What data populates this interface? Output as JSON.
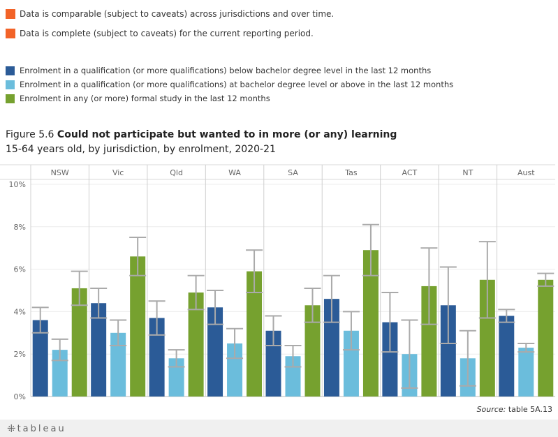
{
  "notes": {
    "items": [
      {
        "text": "Data is comparable (subject to caveats) across jurisdictions and over time.",
        "color": "#F26328"
      },
      {
        "text": "Data is complete (subject to caveats) for the current reporting period.",
        "color": "#F26328"
      }
    ]
  },
  "legend": {
    "items": [
      {
        "text": "Enrolment in a qualification (or more qualifications) below bachelor degree level in the last 12 months",
        "color": "#2B5B97"
      },
      {
        "text": "Enrolment in a qualification (or more qualifications) at bachelor degree level or above in the last 12 months",
        "color": "#6BBDDC"
      },
      {
        "text": "Enrolment in any (or more) formal study in the last 12 months",
        "color": "#76A12F"
      }
    ]
  },
  "title": {
    "prefix": "Figure 5.6",
    "main": "Could not participate but wanted to in more (or any) learning",
    "subtitle": "15-64 years old, by jurisdiction, by enrolment, 2020-21"
  },
  "source": {
    "label": "Source:",
    "text": "table 5A.13"
  },
  "footer": {
    "logo_text": "tableau"
  },
  "chart_data": {
    "type": "bar",
    "categories": [
      "NSW",
      "Vic",
      "Qld",
      "WA",
      "SA",
      "Tas",
      "ACT",
      "NT",
      "Aust"
    ],
    "ylim": [
      0,
      10
    ],
    "yticks": [
      "0%",
      "2%",
      "4%",
      "6%",
      "8%",
      "10%"
    ],
    "grid": true,
    "series": [
      {
        "name": "Enrolment in a qualification (or more qualifications) below bachelor degree level in the last 12 months",
        "color": "#2B5B97",
        "values": [
          3.6,
          4.4,
          3.7,
          4.2,
          3.1,
          4.6,
          3.5,
          4.3,
          3.8
        ],
        "ci_low": [
          3.0,
          3.7,
          2.9,
          3.4,
          2.4,
          3.5,
          2.1,
          2.5,
          3.5
        ],
        "ci_high": [
          4.2,
          5.1,
          4.5,
          5.0,
          3.8,
          5.7,
          4.9,
          6.1,
          4.1
        ]
      },
      {
        "name": "Enrolment in a qualification (or more qualifications) at bachelor degree level or above in the last 12 months",
        "color": "#6BBDDC",
        "values": [
          2.2,
          3.0,
          1.8,
          2.5,
          1.9,
          3.1,
          2.0,
          1.8,
          2.3
        ],
        "ci_low": [
          1.7,
          2.4,
          1.4,
          1.8,
          1.4,
          2.2,
          0.4,
          0.5,
          2.1
        ],
        "ci_high": [
          2.7,
          3.6,
          2.2,
          3.2,
          2.4,
          4.0,
          3.6,
          3.1,
          2.5
        ]
      },
      {
        "name": "Enrolment in any (or more) formal study in the last 12 months",
        "color": "#76A12F",
        "values": [
          5.1,
          6.6,
          4.9,
          5.9,
          4.3,
          6.9,
          5.2,
          5.5,
          5.5
        ],
        "ci_low": [
          4.3,
          5.7,
          4.1,
          4.9,
          3.5,
          5.7,
          3.4,
          3.7,
          5.2
        ],
        "ci_high": [
          5.9,
          7.5,
          5.7,
          6.9,
          5.1,
          8.1,
          7.0,
          7.3,
          5.8
        ]
      }
    ]
  }
}
